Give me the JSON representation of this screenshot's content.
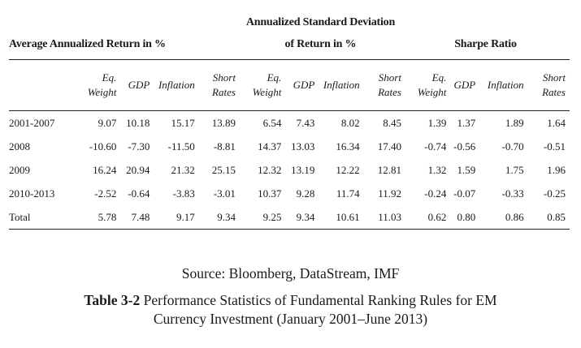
{
  "table": {
    "groups": {
      "return": "Average Annualized Return in %",
      "stdev_line1": "Annualized Standard Deviation",
      "stdev_line2": "of Return in %",
      "sharpe": "Sharpe Ratio"
    },
    "subheaders": [
      [
        "Eq.",
        "Weight"
      ],
      [
        "GDP"
      ],
      [
        "Inflation"
      ],
      [
        "Short",
        "Rates"
      ],
      [
        "Eq.",
        "Weight"
      ],
      [
        "GDP"
      ],
      [
        "Inflation"
      ],
      [
        "Short",
        "Rates"
      ],
      [
        "Eq.",
        "Weight"
      ],
      [
        "GDP"
      ],
      [
        "Inflation"
      ],
      [
        "Short",
        "Rates"
      ]
    ],
    "rows": [
      {
        "period": "2001-2007",
        "values": [
          "9.07",
          "10.18",
          "15.17",
          "13.89",
          "6.54",
          "7.43",
          "8.02",
          "8.45",
          "1.39",
          "1.37",
          "1.89",
          "1.64"
        ]
      },
      {
        "period": "2008",
        "values": [
          "-10.60",
          "-7.30",
          "-11.50",
          "-8.81",
          "14.37",
          "13.03",
          "16.34",
          "17.40",
          "-0.74",
          "-0.56",
          "-0.70",
          "-0.51"
        ]
      },
      {
        "period": "2009",
        "values": [
          "16.24",
          "20.94",
          "21.32",
          "25.15",
          "12.32",
          "13.19",
          "12.22",
          "12.81",
          "1.32",
          "1.59",
          "1.75",
          "1.96"
        ]
      },
      {
        "period": "2010-2013",
        "values": [
          "-2.52",
          "-0.64",
          "-3.83",
          "-3.01",
          "10.37",
          "9.28",
          "11.74",
          "11.92",
          "-0.24",
          "-0.07",
          "-0.33",
          "-0.25"
        ]
      },
      {
        "period": "Total",
        "values": [
          "5.78",
          "7.48",
          "9.17",
          "9.34",
          "9.25",
          "9.34",
          "10.61",
          "11.03",
          "0.62",
          "0.80",
          "0.86",
          "0.85"
        ]
      }
    ]
  },
  "source": "Source: Bloomberg, DataStream, IMF",
  "caption": {
    "label": "Table 3-2",
    "line1": "Performance Statistics of Fundamental Ranking Rules for EM",
    "line2": "Currency Investment (January 2001–June 2013)"
  }
}
